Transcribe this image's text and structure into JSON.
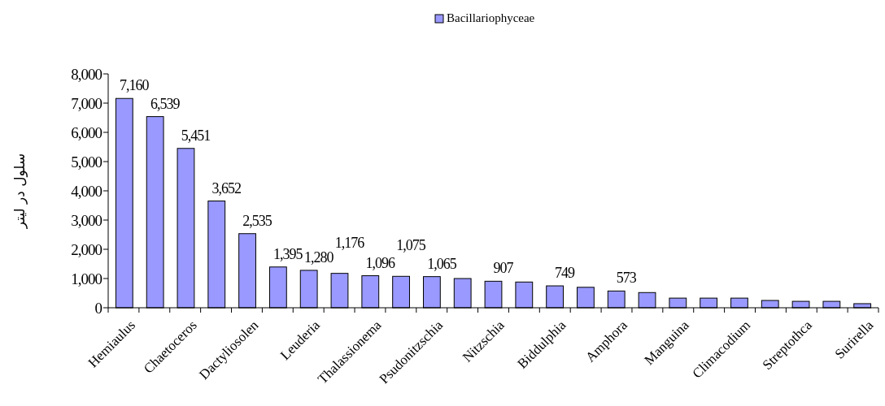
{
  "chart_data": {
    "type": "bar",
    "ylabel": "سلول در لیتر",
    "legend": "top",
    "categories": [
      "Hemiaulus",
      null,
      "Chaetoceros",
      null,
      "Dactyliosolen",
      null,
      "Leuderia",
      null,
      "Thalassionema",
      null,
      "Psudonitzschia",
      null,
      "Nitzschia",
      null,
      "Biddulphia",
      null,
      "Amphora",
      null,
      "Manguina",
      null,
      "Climacodium",
      null,
      "Streptothca",
      null,
      "Surirella"
    ],
    "series": [
      {
        "name": "Bacillariophyceae",
        "color": "#9999ff",
        "values": [
          7160,
          6539,
          5451,
          3652,
          2535,
          1395,
          1280,
          1176,
          1096,
          1075,
          1065,
          1000,
          907,
          880,
          749,
          700,
          573,
          520,
          330,
          330,
          330,
          250,
          220,
          220,
          140
        ],
        "value_labels": [
          "7,160",
          "6,539",
          "5,451",
          "3,652",
          "2,535",
          "1,395",
          "1,280",
          "1,176",
          "1,096",
          "1,075",
          "1,065",
          null,
          "907",
          null,
          "749",
          null,
          "573",
          null,
          null,
          null,
          null,
          null,
          null,
          null,
          null
        ]
      }
    ],
    "ylim": [
      0,
      8000
    ],
    "yticks": [
      {
        "value": 0,
        "label": "0"
      },
      {
        "value": 1000,
        "label": "1,000"
      },
      {
        "value": 2000,
        "label": "2,000"
      },
      {
        "value": 3000,
        "label": "3,000"
      },
      {
        "value": 4000,
        "label": "4,000"
      },
      {
        "value": 5000,
        "label": "5,000"
      },
      {
        "value": 6000,
        "label": "6,000"
      },
      {
        "value": 7000,
        "label": "7,000"
      },
      {
        "value": 8000,
        "label": "8,000"
      }
    ],
    "grid": false
  }
}
